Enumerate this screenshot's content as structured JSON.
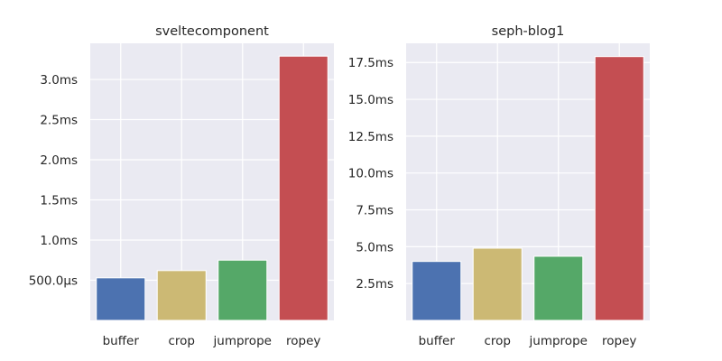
{
  "chart_data": [
    {
      "type": "bar",
      "title": "sveltecomponent",
      "categories": [
        "buffer",
        "crop",
        "jumprope",
        "ropey"
      ],
      "values": [
        0.53,
        0.62,
        0.75,
        3.29
      ],
      "unit": "ms",
      "ylim": [
        0,
        3.45
      ],
      "yticks": [
        {
          "value": 0.5,
          "label": "500.0µs"
        },
        {
          "value": 1.0,
          "label": "1.0ms"
        },
        {
          "value": 1.5,
          "label": "1.5ms"
        },
        {
          "value": 2.0,
          "label": "2.0ms"
        },
        {
          "value": 2.5,
          "label": "2.5ms"
        },
        {
          "value": 3.0,
          "label": "3.0ms"
        }
      ],
      "colors": [
        "#4c72b0",
        "#ccb974",
        "#55a868",
        "#c44e52"
      ],
      "grid": true,
      "xlabel": "",
      "ylabel": ""
    },
    {
      "type": "bar",
      "title": "seph-blog1",
      "categories": [
        "buffer",
        "crop",
        "jumprope",
        "ropey"
      ],
      "values": [
        4.0,
        4.9,
        4.35,
        17.9
      ],
      "unit": "ms",
      "ylim": [
        0,
        18.8
      ],
      "yticks": [
        {
          "value": 2.5,
          "label": "2.5ms"
        },
        {
          "value": 5.0,
          "label": "5.0ms"
        },
        {
          "value": 7.5,
          "label": "7.5ms"
        },
        {
          "value": 10.0,
          "label": "10.0ms"
        },
        {
          "value": 12.5,
          "label": "12.5ms"
        },
        {
          "value": 15.0,
          "label": "15.0ms"
        },
        {
          "value": 17.5,
          "label": "17.5ms"
        }
      ],
      "colors": [
        "#4c72b0",
        "#ccb974",
        "#55a868",
        "#c44e52"
      ],
      "grid": true,
      "xlabel": "",
      "ylabel": ""
    }
  ],
  "style": {
    "plot_background": "#eaeaf2",
    "grid_color": "#ffffff",
    "text_color": "#262626"
  }
}
